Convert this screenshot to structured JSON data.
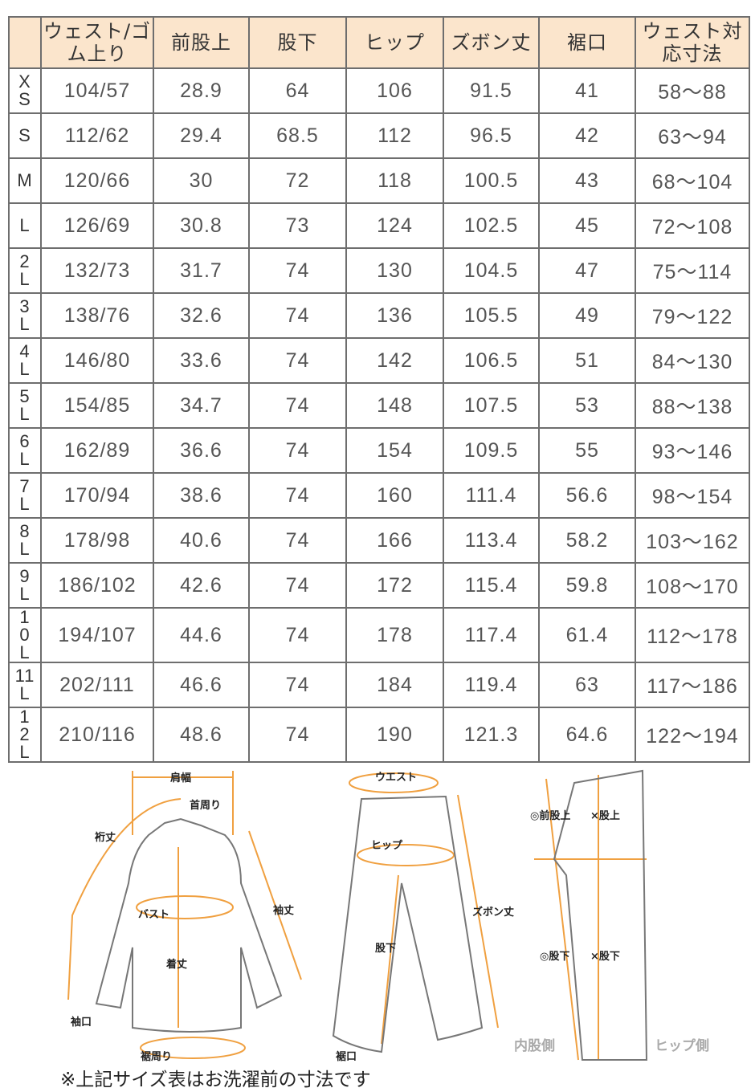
{
  "table": {
    "headers": [
      "",
      "ウェスト/ゴム上り",
      "前股上",
      "股下",
      "ヒップ",
      "ズボン丈",
      "裾口",
      "ウェスト対応寸法"
    ],
    "rows": [
      [
        "XS",
        "104/57",
        "28.9",
        "64",
        "106",
        "91.5",
        "41",
        "58～88"
      ],
      [
        "S",
        "112/62",
        "29.4",
        "68.5",
        "112",
        "96.5",
        "42",
        "63～94"
      ],
      [
        "M",
        "120/66",
        "30",
        "72",
        "118",
        "100.5",
        "43",
        "68～104"
      ],
      [
        "L",
        "126/69",
        "30.8",
        "73",
        "124",
        "102.5",
        "45",
        "72～108"
      ],
      [
        "2L",
        "132/73",
        "31.7",
        "74",
        "130",
        "104.5",
        "47",
        "75～114"
      ],
      [
        "3L",
        "138/76",
        "32.6",
        "74",
        "136",
        "105.5",
        "49",
        "79～122"
      ],
      [
        "4L",
        "146/80",
        "33.6",
        "74",
        "142",
        "106.5",
        "51",
        "84～130"
      ],
      [
        "5L",
        "154/85",
        "34.7",
        "74",
        "148",
        "107.5",
        "53",
        "88～138"
      ],
      [
        "6L",
        "162/89",
        "36.6",
        "74",
        "154",
        "109.5",
        "55",
        "93～146"
      ],
      [
        "7L",
        "170/94",
        "38.6",
        "74",
        "160",
        "111.4",
        "56.6",
        "98～154"
      ],
      [
        "8L",
        "178/98",
        "40.6",
        "74",
        "166",
        "113.4",
        "58.2",
        "103～162"
      ],
      [
        "9L",
        "186/102",
        "42.6",
        "74",
        "172",
        "115.4",
        "59.8",
        "108～170"
      ],
      [
        "10L",
        "194/107",
        "44.6",
        "74",
        "178",
        "117.4",
        "61.4",
        "112～178"
      ],
      [
        "11L",
        "202/111",
        "46.6",
        "74",
        "184",
        "119.4",
        "63",
        "117～186"
      ],
      [
        "12L",
        "210/116",
        "48.6",
        "74",
        "190",
        "121.3",
        "64.6",
        "122～194"
      ]
    ]
  },
  "diagram": {
    "shirt": {
      "shoulder": "肩幅",
      "neck": "首周り",
      "yuki": "裄丈",
      "sleeve": "袖丈",
      "bust": "バスト",
      "length": "着丈",
      "cuff": "袖口",
      "hem": "裾周り"
    },
    "pants": {
      "waist": "ウエスト",
      "hip": "ヒップ",
      "inseam": "股下",
      "length": "ズボン丈",
      "hem": "裾口"
    },
    "side": {
      "front_rise": "◎前股上",
      "rise": "×股上",
      "inseam_o": "◎股下",
      "inseam_x": "×股下",
      "inner": "内股側",
      "hip": "ヒップ側"
    }
  },
  "colors": {
    "header_bg": "#fbe5cc",
    "accent": "#f0a040"
  },
  "note": "※上記サイズ表はお洗濯前の寸法です"
}
